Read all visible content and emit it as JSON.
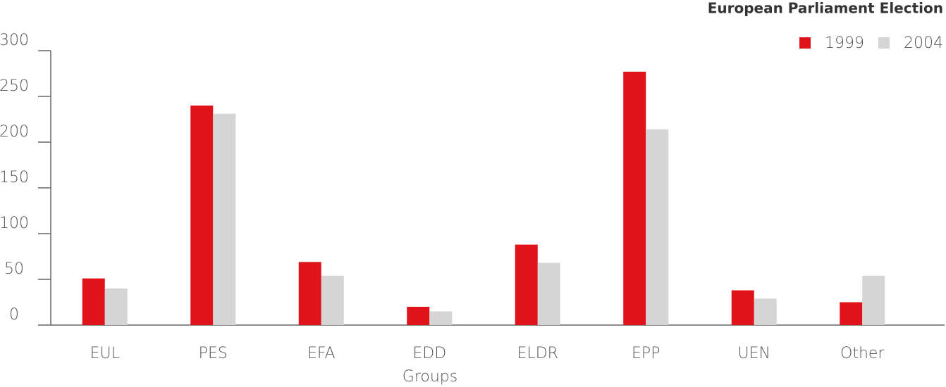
{
  "chart_data": {
    "type": "bar",
    "title": "European Parliament Election",
    "x_label": "Groups",
    "categories": [
      "EUL",
      "PES",
      "EFA",
      "EDD",
      "ELDR",
      "EPP",
      "UEN",
      "Other"
    ],
    "series": [
      {
        "name": "1999",
        "color": "#e0121a",
        "values": [
          51,
          240,
          69,
          20,
          88,
          277,
          38,
          25
        ]
      },
      {
        "name": "2004",
        "color": "#d5d5d5",
        "values": [
          40,
          231,
          54,
          15,
          68,
          214,
          29,
          54
        ]
      }
    ],
    "ylim": [
      0,
      300
    ],
    "yticks": [
      0,
      50,
      100,
      150,
      200,
      250,
      300
    ],
    "legend": "top-right"
  }
}
